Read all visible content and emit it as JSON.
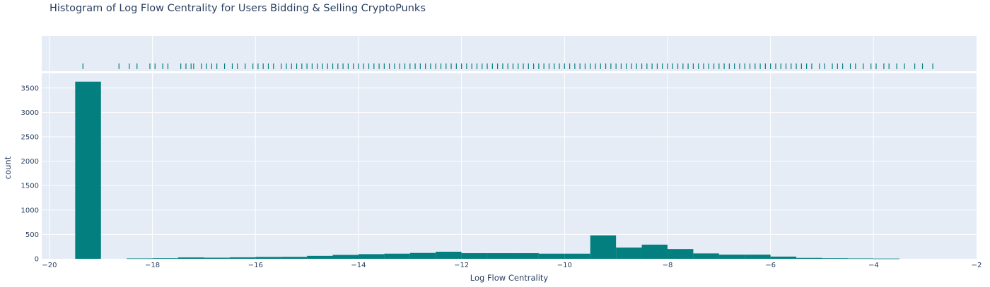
{
  "chart_data": {
    "type": "bar",
    "title": "Histogram of Log Flow Centrality for Users Bidding & Selling CryptoPunks",
    "xlabel": "Log Flow Centrality",
    "ylabel": "count",
    "xlim": [
      -20.15,
      -2.0
    ],
    "ylim": [
      0,
      3800
    ],
    "x_ticks": [
      -20,
      -18,
      -16,
      -14,
      -12,
      -10,
      -8,
      -6,
      -4,
      -2
    ],
    "x_tick_labels": [
      "−20",
      "−18",
      "−16",
      "−14",
      "−12",
      "−10",
      "−8",
      "−6",
      "−4",
      "−2"
    ],
    "y_ticks": [
      0,
      500,
      1000,
      1500,
      2000,
      2500,
      3000,
      3500
    ],
    "y_tick_labels": [
      "0",
      "500",
      "1000",
      "1500",
      "2000",
      "2500",
      "3000",
      "3500"
    ],
    "bin_size": 0.5,
    "bins": [
      {
        "x0": -19.5,
        "x1": -19.0,
        "count": 3630
      },
      {
        "x0": -19.0,
        "x1": -18.5,
        "count": 0
      },
      {
        "x0": -18.5,
        "x1": -18.0,
        "count": 8
      },
      {
        "x0": -18.0,
        "x1": -17.5,
        "count": 12
      },
      {
        "x0": -17.5,
        "x1": -17.0,
        "count": 28
      },
      {
        "x0": -17.0,
        "x1": -16.5,
        "count": 22
      },
      {
        "x0": -16.5,
        "x1": -16.0,
        "count": 30
      },
      {
        "x0": -16.0,
        "x1": -15.5,
        "count": 38
      },
      {
        "x0": -15.5,
        "x1": -15.0,
        "count": 40
      },
      {
        "x0": -15.0,
        "x1": -14.5,
        "count": 60
      },
      {
        "x0": -14.5,
        "x1": -14.0,
        "count": 80
      },
      {
        "x0": -14.0,
        "x1": -13.5,
        "count": 95
      },
      {
        "x0": -13.5,
        "x1": -13.0,
        "count": 105
      },
      {
        "x0": -13.0,
        "x1": -12.5,
        "count": 120
      },
      {
        "x0": -12.5,
        "x1": -12.0,
        "count": 145
      },
      {
        "x0": -12.0,
        "x1": -11.5,
        "count": 115
      },
      {
        "x0": -11.5,
        "x1": -11.0,
        "count": 115
      },
      {
        "x0": -11.0,
        "x1": -10.5,
        "count": 115
      },
      {
        "x0": -10.5,
        "x1": -10.0,
        "count": 105
      },
      {
        "x0": -10.0,
        "x1": -9.5,
        "count": 105
      },
      {
        "x0": -9.5,
        "x1": -9.0,
        "count": 480
      },
      {
        "x0": -9.0,
        "x1": -8.5,
        "count": 230
      },
      {
        "x0": -8.5,
        "x1": -8.0,
        "count": 290
      },
      {
        "x0": -8.0,
        "x1": -7.5,
        "count": 200
      },
      {
        "x0": -7.5,
        "x1": -7.0,
        "count": 110
      },
      {
        "x0": -7.0,
        "x1": -6.5,
        "count": 85
      },
      {
        "x0": -6.5,
        "x1": -6.0,
        "count": 85
      },
      {
        "x0": -6.0,
        "x1": -5.5,
        "count": 45
      },
      {
        "x0": -5.5,
        "x1": -5.0,
        "count": 18
      },
      {
        "x0": -5.0,
        "x1": -4.5,
        "count": 12
      },
      {
        "x0": -4.5,
        "x1": -4.0,
        "count": 8
      },
      {
        "x0": -4.0,
        "x1": -3.5,
        "count": 5
      }
    ],
    "rug_points": [
      -19.35,
      -18.65,
      -18.45,
      -18.3,
      -18.05,
      -17.95,
      -17.8,
      -17.7,
      -17.45,
      -17.35,
      -17.25,
      -17.2,
      -17.05,
      -16.95,
      -16.85,
      -16.75,
      -16.6,
      -16.45,
      -16.35,
      -16.2,
      -16.05,
      -15.95,
      -15.85,
      -15.75,
      -15.65,
      -15.5,
      -15.4,
      -15.3,
      -15.2,
      -15.1,
      -15.0,
      -14.9,
      -14.8,
      -14.7,
      -14.6,
      -14.5,
      -14.4,
      -14.3,
      -14.2,
      -14.1,
      -14.0,
      -13.9,
      -13.8,
      -13.7,
      -13.6,
      -13.5,
      -13.4,
      -13.3,
      -13.2,
      -13.1,
      -13.0,
      -12.9,
      -12.8,
      -12.7,
      -12.6,
      -12.5,
      -12.4,
      -12.3,
      -12.2,
      -12.1,
      -12.0,
      -11.9,
      -11.8,
      -11.7,
      -11.6,
      -11.5,
      -11.4,
      -11.3,
      -11.2,
      -11.1,
      -11.0,
      -10.9,
      -10.8,
      -10.7,
      -10.6,
      -10.5,
      -10.4,
      -10.3,
      -10.2,
      -10.1,
      -10.0,
      -9.9,
      -9.8,
      -9.7,
      -9.6,
      -9.5,
      -9.4,
      -9.3,
      -9.2,
      -9.1,
      -9.0,
      -8.9,
      -8.8,
      -8.7,
      -8.6,
      -8.5,
      -8.4,
      -8.3,
      -8.2,
      -8.1,
      -8.0,
      -7.9,
      -7.8,
      -7.7,
      -7.6,
      -7.5,
      -7.4,
      -7.3,
      -7.2,
      -7.1,
      -7.0,
      -6.9,
      -6.8,
      -6.7,
      -6.6,
      -6.5,
      -6.4,
      -6.3,
      -6.2,
      -6.1,
      -6.0,
      -5.9,
      -5.8,
      -5.7,
      -5.6,
      -5.5,
      -5.4,
      -5.3,
      -5.2,
      -5.05,
      -4.95,
      -4.8,
      -4.7,
      -4.6,
      -4.45,
      -4.35,
      -4.2,
      -4.05,
      -3.95,
      -3.8,
      -3.7,
      -3.55,
      -3.4,
      -3.2,
      -3.05,
      -2.85
    ]
  },
  "colors": {
    "bar": "#037f7f",
    "plot_background": "#e5ecf6",
    "grid": "#ffffff",
    "text": "#2a3f5f"
  }
}
